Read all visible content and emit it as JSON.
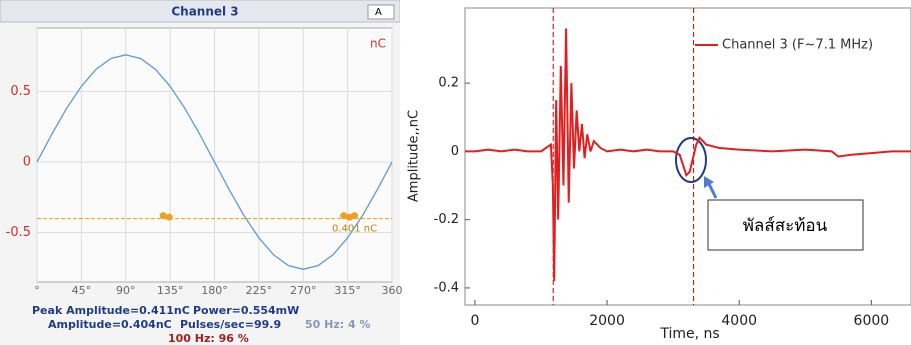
{
  "chart_data": [
    {
      "type": "line",
      "title": "Channel 3",
      "unit": "nC",
      "selector": "A",
      "xlim": [
        0,
        360
      ],
      "ylim": [
        -0.85,
        0.95
      ],
      "xticks": [
        {
          "value": 0,
          "label": "°"
        },
        {
          "value": 45,
          "label": "45°"
        },
        {
          "value": 90,
          "label": "90°"
        },
        {
          "value": 135,
          "label": "135°"
        },
        {
          "value": 180,
          "label": "180°"
        },
        {
          "value": 225,
          "label": "225°"
        },
        {
          "value": 270,
          "label": "270°"
        },
        {
          "value": 315,
          "label": "315°"
        },
        360
      ],
      "yticks": [
        0.5,
        0,
        -0.5
      ],
      "grid": true,
      "series": [
        {
          "color": "#5b9bd5",
          "x": [
            0,
            15,
            30,
            45,
            60,
            75,
            90,
            105,
            120,
            135,
            150,
            165,
            180,
            195,
            210,
            225,
            240,
            255,
            270,
            285,
            300,
            315,
            330,
            345,
            360
          ],
          "values": [
            0,
            0.197,
            0.38,
            0.537,
            0.658,
            0.734,
            0.76,
            0.734,
            0.658,
            0.537,
            0.38,
            0.197,
            0,
            -0.197,
            -0.38,
            -0.537,
            -0.658,
            -0.734,
            -0.76,
            -0.734,
            -0.658,
            -0.537,
            -0.38,
            -0.197,
            0
          ]
        }
      ],
      "threshold": -0.401,
      "threshold_label": "0.401 nC",
      "pulses": {
        "color": "#f0a020",
        "x": [
          128,
          134,
          311,
          317,
          322
        ],
        "values": [
          -0.38,
          -0.39,
          -0.38,
          -0.39,
          -0.38
        ]
      }
    },
    {
      "type": "line",
      "xlabel": "Time, ns",
      "ylabel": "Amplitude,,nC",
      "xlim": [
        -150,
        6600
      ],
      "ylim": [
        -0.45,
        0.42
      ],
      "xticks": [
        0,
        2000,
        4000,
        6000
      ],
      "yticks": [
        0.2,
        0,
        -0.2,
        -0.4
      ],
      "grid": false,
      "legend": "top-right",
      "cursors": [
        1185,
        3310
      ],
      "series": [
        {
          "name": "Channel 3 (F~7.1 MHz)",
          "color": "#e02020",
          "x": [
            -150,
            0,
            200,
            400,
            600,
            800,
            1000,
            1150,
            1180,
            1200,
            1230,
            1260,
            1300,
            1340,
            1380,
            1420,
            1460,
            1500,
            1540,
            1580,
            1620,
            1660,
            1700,
            1750,
            1800,
            1900,
            2000,
            2200,
            2400,
            2600,
            2800,
            3000,
            3100,
            3150,
            3200,
            3250,
            3300,
            3350,
            3400,
            3500,
            3700,
            4000,
            4500,
            5000,
            5400,
            5500,
            5700,
            6000,
            6300,
            6600
          ],
          "values": [
            0,
            0,
            0.005,
            0,
            0.005,
            0,
            0,
            0.02,
            -0.1,
            -0.38,
            0.15,
            -0.2,
            0.25,
            -0.1,
            0.36,
            -0.15,
            0.2,
            -0.05,
            0.12,
            0,
            0.08,
            -0.02,
            0.05,
            0,
            0.03,
            0.01,
            0,
            0.005,
            0,
            0.005,
            0,
            0,
            -0.01,
            -0.04,
            -0.07,
            -0.06,
            -0.02,
            0.02,
            0.04,
            0.02,
            0.01,
            0.005,
            0,
            0.005,
            0,
            -0.015,
            -0.01,
            -0.005,
            0,
            0
          ]
        }
      ],
      "annotation": "พัลส์สะท้อน"
    }
  ],
  "readout": [
    "Peak Amplitude=0.411nC",
    "Power=0.554mW",
    "Amplitude=0.404nC",
    "Pulses/sec=99.9",
    "50 Hz: 4 %",
    "100 Hz: 96 %"
  ]
}
